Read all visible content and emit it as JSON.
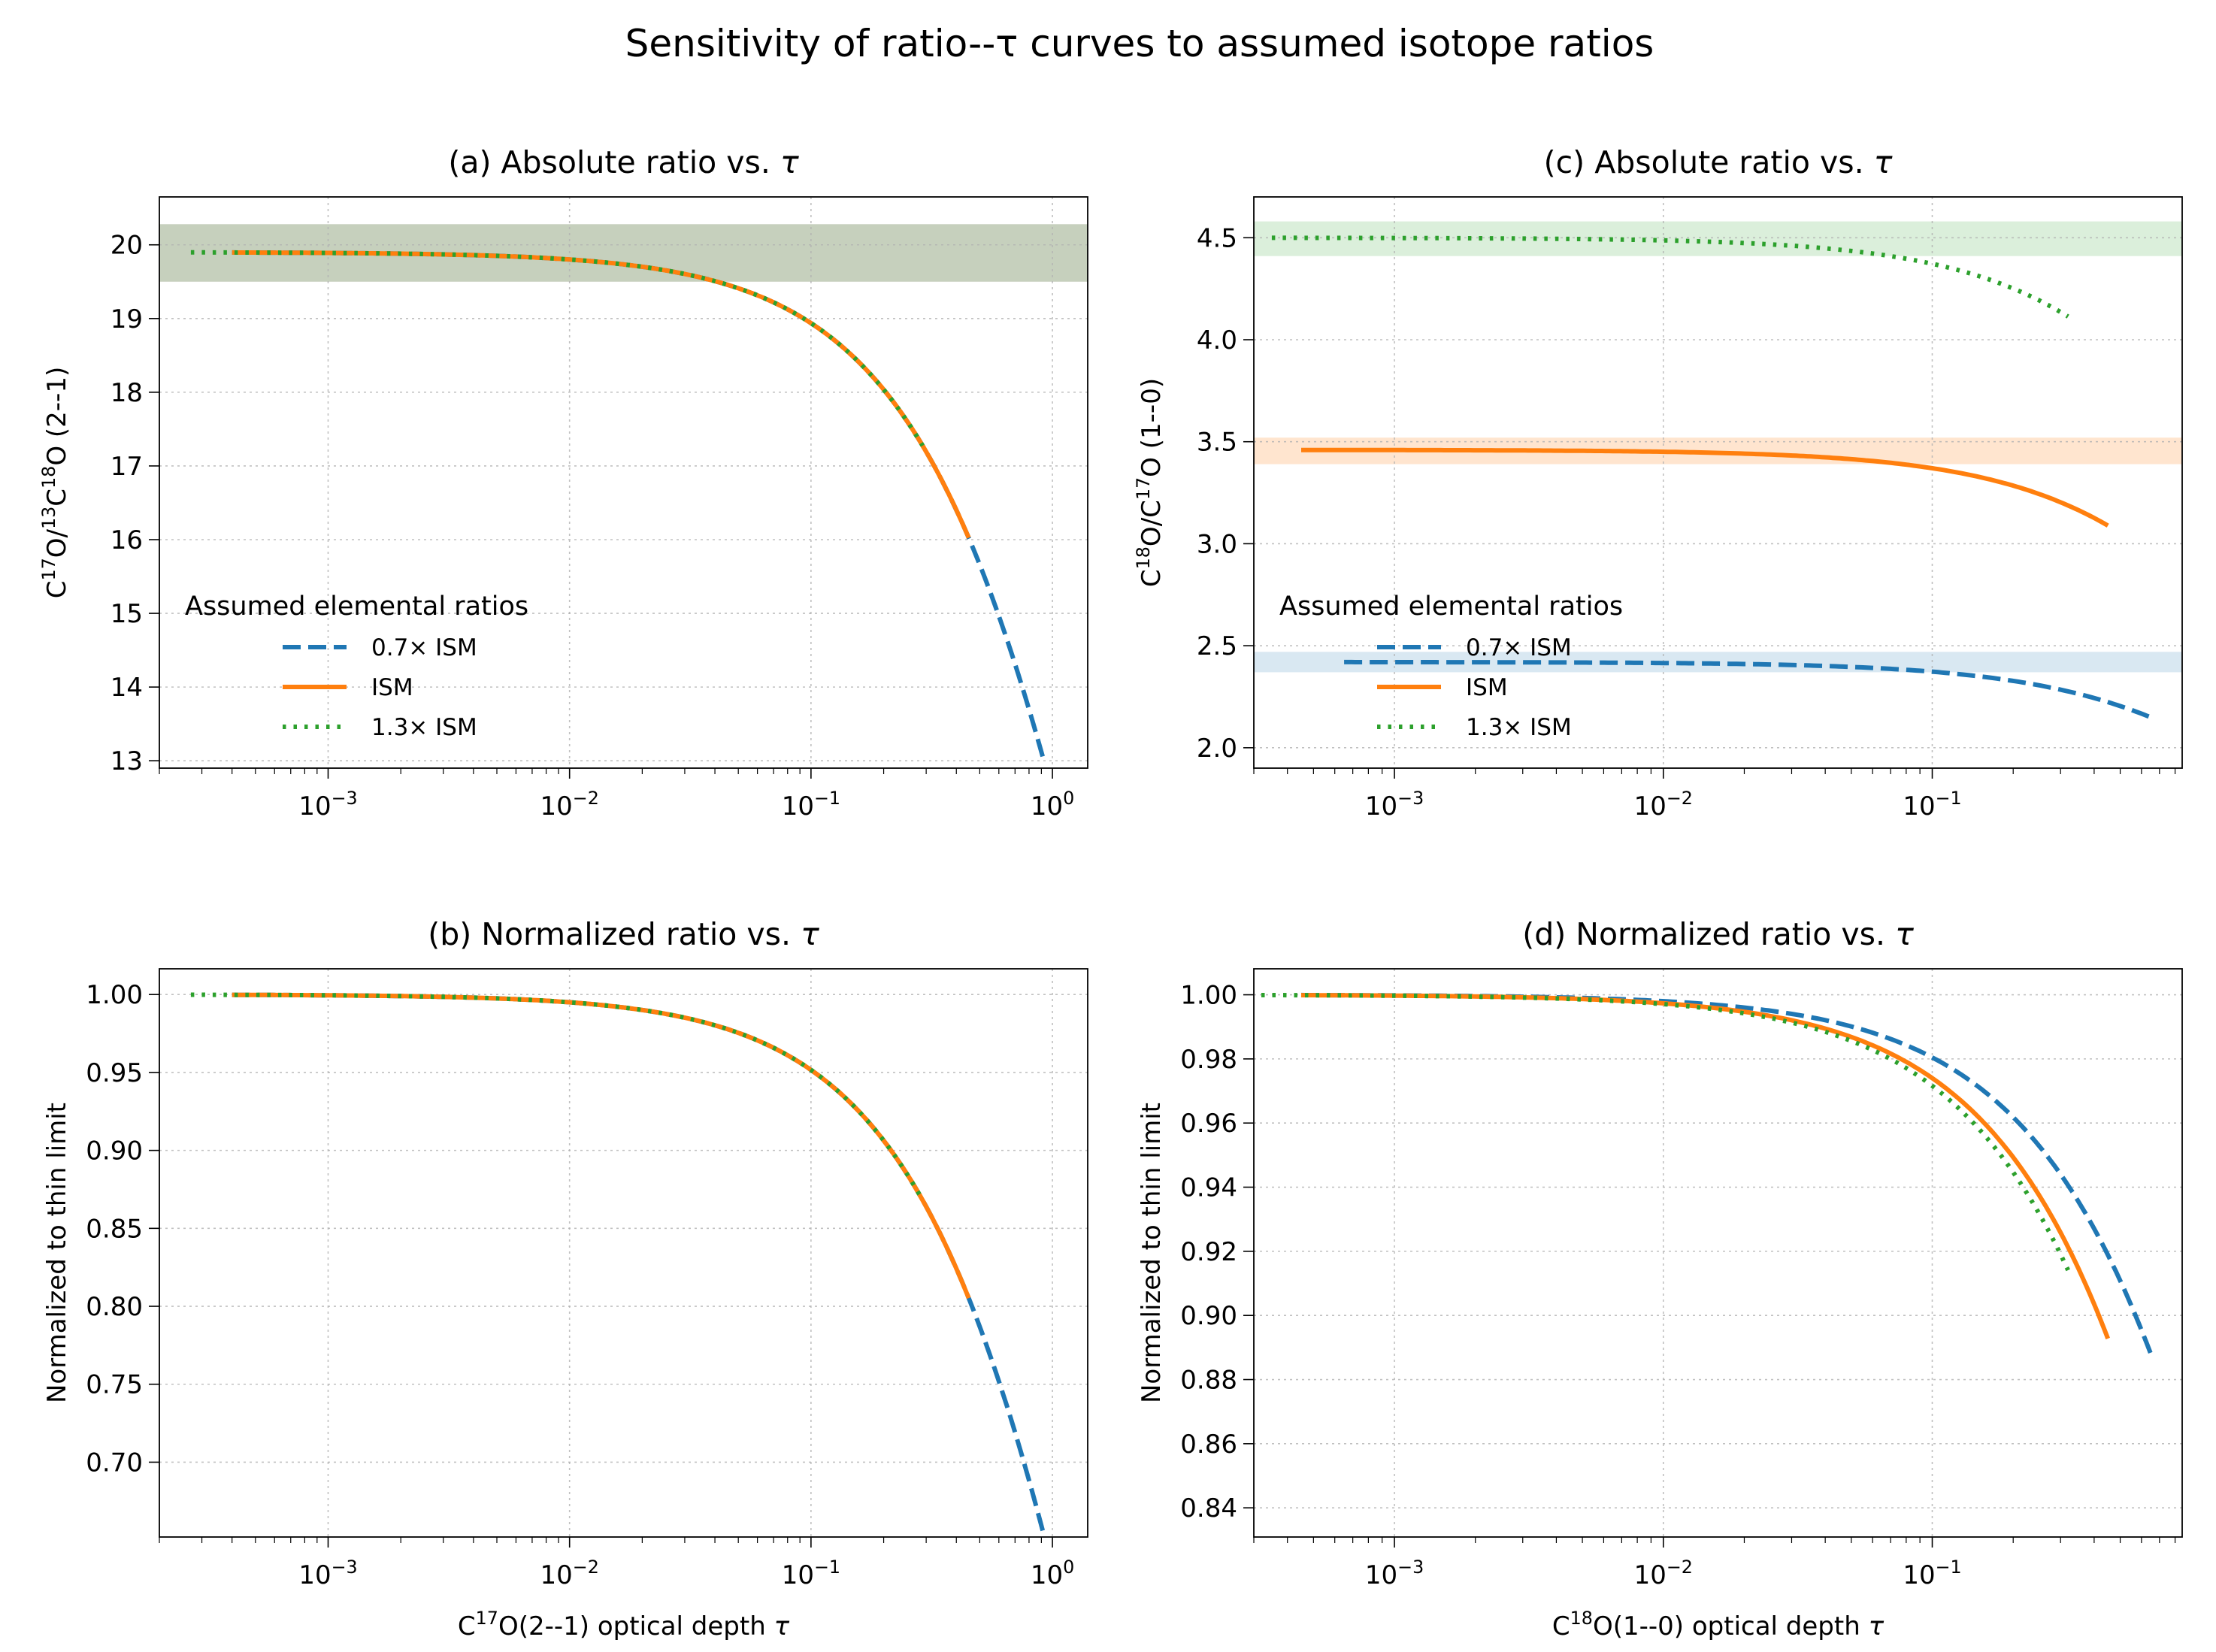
{
  "title": "Sensitivity of ratio--τ curves to assumed isotope ratios",
  "colors": {
    "scaled_0_7": "#1f77b4",
    "ism": "#ff7f0e",
    "scaled_1_3": "#2ca02c",
    "band_a": "#8da17c"
  },
  "legend": {
    "title": "Assumed elemental ratios",
    "items": [
      "0.7× ISM",
      "ISM",
      "1.3× ISM"
    ]
  },
  "chart_data": [
    {
      "id": "a",
      "type": "line",
      "title": "(a) Absolute ratio vs. τ",
      "ylabel": "C17O/13C18O (2--1)",
      "ylabel_parts": {
        "p1": "C",
        "s1": "17",
        "p2": "O/",
        "s2": "13",
        "p3": "C",
        "s3": "18",
        "p4": "O (2--1)"
      },
      "xlabel": "",
      "xscale": "log",
      "xlim": [
        0.0002,
        1.4
      ],
      "ylim": [
        12.9,
        20.65
      ],
      "xticks": [
        {
          "v": 0.001,
          "base": "10",
          "exp": "−3"
        },
        {
          "v": 0.01,
          "base": "10",
          "exp": "−2"
        },
        {
          "v": 0.1,
          "base": "10",
          "exp": "−1"
        },
        {
          "v": 1,
          "base": "10",
          "exp": "0"
        }
      ],
      "yticks": [
        {
          "v": 13,
          "label": "13"
        },
        {
          "v": 14,
          "label": "14"
        },
        {
          "v": 15,
          "label": "15"
        },
        {
          "v": 16,
          "label": "16"
        },
        {
          "v": 17,
          "label": "17"
        },
        {
          "v": 18,
          "label": "18"
        },
        {
          "v": 19,
          "label": "19"
        },
        {
          "v": 20,
          "label": "20"
        }
      ],
      "bands": [
        {
          "y0": 19.5,
          "y1": 20.28,
          "color": "#8da17c",
          "opacity": 0.5
        }
      ],
      "series": [
        {
          "name": "0.7× ISM",
          "style": "dashed",
          "color": "#1f77b4",
          "model": "trap",
          "thin": 19.9,
          "x0": 0.0004,
          "x1": 0.92
        },
        {
          "name": "ISM",
          "style": "solid",
          "color": "#ff7f0e",
          "model": "trap",
          "thin": 19.9,
          "x0": 0.0004,
          "x1": 0.45
        },
        {
          "name": "1.3× ISM",
          "style": "dotted",
          "color": "#2ca02c",
          "model": "trap",
          "thin": 19.9,
          "x0": 0.00027,
          "x1": 0.29
        }
      ],
      "legend_position": "lower-left"
    },
    {
      "id": "c",
      "type": "line",
      "title": "(c) Absolute ratio vs. τ",
      "ylabel": "C18O/C17O (1--0)",
      "ylabel_parts": {
        "p1": "C",
        "s1": "18",
        "p2": "O/C",
        "s2": "17",
        "p3": "O (1--0)"
      },
      "xlabel": "",
      "xscale": "log",
      "xlim": [
        0.0003,
        0.85
      ],
      "ylim": [
        1.9,
        4.7
      ],
      "xticks": [
        {
          "v": 0.001,
          "base": "10",
          "exp": "−3"
        },
        {
          "v": 0.01,
          "base": "10",
          "exp": "−2"
        },
        {
          "v": 0.1,
          "base": "10",
          "exp": "−1"
        }
      ],
      "yticks": [
        {
          "v": 2.0,
          "label": "2.0"
        },
        {
          "v": 2.5,
          "label": "2.5"
        },
        {
          "v": 3.0,
          "label": "3.0"
        },
        {
          "v": 3.5,
          "label": "3.5"
        },
        {
          "v": 4.0,
          "label": "4.0"
        },
        {
          "v": 4.5,
          "label": "4.5"
        }
      ],
      "bands": [
        {
          "y0": 2.37,
          "y1": 2.47,
          "color": "#1f77b4",
          "opacity": 0.17
        },
        {
          "y0": 3.39,
          "y1": 3.52,
          "color": "#ff7f0e",
          "opacity": 0.2
        },
        {
          "y0": 4.41,
          "y1": 4.58,
          "color": "#2ca02c",
          "opacity": 0.17
        }
      ],
      "series": [
        {
          "name": "0.7× ISM",
          "style": "dashed",
          "color": "#1f77b4",
          "model": "ratio",
          "thin": 2.42,
          "k": 0.6,
          "x0": 0.00065,
          "x1": 0.65
        },
        {
          "name": "ISM",
          "style": "solid",
          "color": "#ff7f0e",
          "model": "ratio",
          "thin": 3.46,
          "k": 0.4667,
          "x0": 0.00045,
          "x1": 0.45
        },
        {
          "name": "1.3× ISM",
          "style": "dotted",
          "color": "#2ca02c",
          "model": "ratio",
          "thin": 4.5,
          "k": 0.4167,
          "x0": 0.00035,
          "x1": 0.32
        }
      ],
      "legend_position": "lower-left"
    },
    {
      "id": "b",
      "type": "line",
      "title": "(b) Normalized ratio vs. τ",
      "ylabel": "Normalized to thin limit",
      "xlabel": "C17O(2--1) optical depth τ",
      "xlabel_parts": {
        "p1": "C",
        "s1": "17",
        "p2": "O(2--1) optical depth "
      },
      "xscale": "log",
      "xlim": [
        0.0002,
        1.4
      ],
      "ylim": [
        0.652,
        1.0165
      ],
      "xticks": [
        {
          "v": 0.001,
          "base": "10",
          "exp": "−3"
        },
        {
          "v": 0.01,
          "base": "10",
          "exp": "−2"
        },
        {
          "v": 0.1,
          "base": "10",
          "exp": "−1"
        },
        {
          "v": 1,
          "base": "10",
          "exp": "0"
        }
      ],
      "yticks": [
        {
          "v": 0.7,
          "label": "0.70"
        },
        {
          "v": 0.75,
          "label": "0.75"
        },
        {
          "v": 0.8,
          "label": "0.80"
        },
        {
          "v": 0.85,
          "label": "0.85"
        },
        {
          "v": 0.9,
          "label": "0.90"
        },
        {
          "v": 0.95,
          "label": "0.95"
        },
        {
          "v": 1.0,
          "label": "1.00"
        }
      ],
      "bands": [],
      "series": [
        {
          "name": "0.7× ISM",
          "style": "dashed",
          "color": "#1f77b4",
          "model": "trap",
          "thin": 1,
          "x0": 0.0004,
          "x1": 0.92
        },
        {
          "name": "ISM",
          "style": "solid",
          "color": "#ff7f0e",
          "model": "trap",
          "thin": 1,
          "x0": 0.0004,
          "x1": 0.45
        },
        {
          "name": "1.3× ISM",
          "style": "dotted",
          "color": "#2ca02c",
          "model": "trap",
          "thin": 1,
          "x0": 0.00027,
          "x1": 0.29
        }
      ]
    },
    {
      "id": "d",
      "type": "line",
      "title": "(d) Normalized ratio vs. τ",
      "ylabel": "Normalized to thin limit",
      "xlabel": "C18O(1--0) optical depth τ",
      "xlabel_parts": {
        "p1": "C",
        "s1": "18",
        "p2": "O(1--0) optical depth "
      },
      "xscale": "log",
      "xlim": [
        0.0003,
        0.85
      ],
      "ylim": [
        0.8309,
        1.0081
      ],
      "xticks": [
        {
          "v": 0.001,
          "base": "10",
          "exp": "−3"
        },
        {
          "v": 0.01,
          "base": "10",
          "exp": "−2"
        },
        {
          "v": 0.1,
          "base": "10",
          "exp": "−1"
        }
      ],
      "yticks": [
        {
          "v": 0.84,
          "label": "0.84"
        },
        {
          "v": 0.86,
          "label": "0.86"
        },
        {
          "v": 0.88,
          "label": "0.88"
        },
        {
          "v": 0.9,
          "label": "0.90"
        },
        {
          "v": 0.92,
          "label": "0.92"
        },
        {
          "v": 0.94,
          "label": "0.94"
        },
        {
          "v": 0.96,
          "label": "0.96"
        },
        {
          "v": 0.98,
          "label": "0.98"
        },
        {
          "v": 1.0,
          "label": "1.00"
        }
      ],
      "bands": [],
      "series": [
        {
          "name": "0.7× ISM",
          "style": "dashed",
          "color": "#1f77b4",
          "model": "ratio",
          "thin": 1,
          "k": 0.6,
          "x0": 0.00045,
          "x1": 0.65
        },
        {
          "name": "ISM",
          "style": "solid",
          "color": "#ff7f0e",
          "model": "ratio",
          "thin": 1,
          "k": 0.4667,
          "x0": 0.00045,
          "x1": 0.45
        },
        {
          "name": "1.3× ISM",
          "style": "dotted",
          "color": "#2ca02c",
          "model": "ratio",
          "thin": 1,
          "k": 0.4167,
          "x0": 0.00032,
          "x1": 0.32
        }
      ]
    }
  ]
}
